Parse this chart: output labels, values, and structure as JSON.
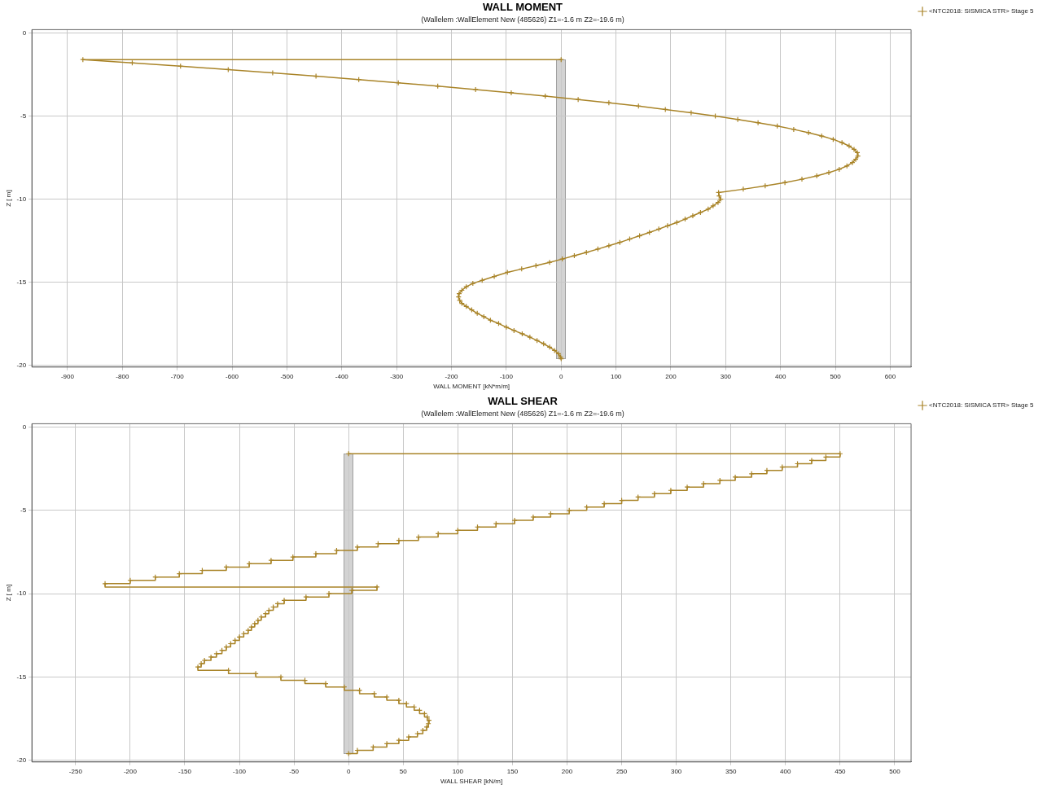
{
  "chart_data": [
    {
      "type": "line",
      "title": "WALL MOMENT",
      "subtitle": "(Wallelem :WallElement New (485626) Z1=-1.6 m Z2=-19.6 m)",
      "xlabel": "WALL MOMENT [kN*m/m]",
      "ylabel": "Z [ m]",
      "series": [
        {
          "name": "<NTC2018: SISMICA STR> Stage 5",
          "color": "#a98428",
          "x": [
            0,
            -872,
            -782,
            -694,
            -607,
            -526,
            -447,
            -369,
            -297,
            -225,
            -156,
            -91,
            -29,
            31,
            87,
            141,
            190,
            237,
            281,
            322,
            359,
            394,
            424,
            451,
            475,
            496,
            512,
            525,
            534,
            540,
            541,
            537,
            531,
            521,
            507,
            488,
            466,
            439,
            408,
            372,
            332,
            287,
            288,
            291,
            286,
            277,
            268,
            254,
            240,
            226,
            211,
            194,
            178,
            161,
            143,
            125,
            107,
            87,
            67,
            46,
            24,
            2,
            -21,
            -46,
            -72,
            -98,
            -122,
            -144,
            -161,
            -173,
            -181,
            -186,
            -187,
            -185,
            -181,
            -173,
            -163,
            -153,
            -141,
            -129,
            -114,
            -100,
            -86,
            -71,
            -57,
            -44,
            -32,
            -21,
            -12,
            -5,
            -1,
            0
          ],
          "values": [
            -1.6,
            -1.6,
            -1.8,
            -2.0,
            -2.2,
            -2.4,
            -2.6,
            -2.8,
            -3.0,
            -3.2,
            -3.4,
            -3.6,
            -3.8,
            -4.0,
            -4.2,
            -4.4,
            -4.6,
            -4.8,
            -5.0,
            -5.2,
            -5.4,
            -5.6,
            -5.8,
            -6.0,
            -6.2,
            -6.4,
            -6.6,
            -6.8,
            -7.0,
            -7.2,
            -7.4,
            -7.6,
            -7.8,
            -8.0,
            -8.2,
            -8.4,
            -8.6,
            -8.8,
            -9.0,
            -9.2,
            -9.4,
            -9.6,
            -9.8,
            -10.0,
            -10.2,
            -10.4,
            -10.6,
            -10.8,
            -11.0,
            -11.2,
            -11.4,
            -11.6,
            -11.8,
            -12.0,
            -12.2,
            -12.4,
            -12.6,
            -12.8,
            -13.0,
            -13.2,
            -13.4,
            -13.6,
            -13.8,
            -14.0,
            -14.2,
            -14.4,
            -14.65,
            -14.88,
            -15.07,
            -15.27,
            -15.48,
            -15.68,
            -15.88,
            -16.09,
            -16.27,
            -16.45,
            -16.66,
            -16.87,
            -17.07,
            -17.28,
            -17.48,
            -17.7,
            -17.9,
            -18.1,
            -18.3,
            -18.5,
            -18.7,
            -18.9,
            -19.1,
            -19.3,
            -19.5,
            -19.6
          ]
        }
      ],
      "xlim": [
        -965,
        638
      ],
      "ylim": [
        -20.1,
        0.2
      ],
      "xticks": [
        -900,
        -800,
        -700,
        -600,
        -500,
        -400,
        -300,
        -200,
        -100,
        0,
        100,
        200,
        300,
        400,
        500,
        600
      ],
      "yticks": [
        0,
        -5,
        -10,
        -15,
        -20
      ],
      "grid": true,
      "legend": "top right",
      "marker": "cross"
    },
    {
      "type": "step",
      "title": "WALL SHEAR",
      "subtitle": "(Wallelem :WallElement New (485626) Z1=-1.6 m Z2=-19.6 m)",
      "xlabel": "WALL SHEAR [kN/m]",
      "ylabel": "Z [ m]",
      "series": [
        {
          "name": "<NTC2018: SISMICA STR> Stage 5",
          "color": "#a98428",
          "x": [
            0,
            450,
            437,
            424,
            411,
            397,
            383,
            369,
            354,
            340,
            325,
            310,
            295,
            280,
            265,
            250,
            234,
            218,
            202,
            185,
            169,
            152,
            135,
            118,
            100,
            82,
            64,
            46,
            27,
            8,
            -11,
            -30,
            -51,
            -71,
            -91,
            -112,
            -134,
            -155,
            -177,
            -200,
            -223,
            26,
            3,
            -18,
            -39,
            -59,
            -65,
            -69,
            -73,
            -76,
            -80,
            -83,
            -86,
            -89,
            -92,
            -96,
            -100,
            -104,
            -108,
            -112,
            -116,
            -121,
            -126,
            -132,
            -135,
            -138,
            -110,
            -85,
            -62,
            -40,
            -21,
            -4,
            10,
            23.5,
            35,
            46,
            53,
            60,
            65,
            69.5,
            72,
            73.6,
            73,
            71.5,
            68,
            63,
            55,
            46,
            35,
            22.5,
            8,
            0
          ],
          "values": [
            -1.6,
            -1.6,
            -1.8,
            -2.0,
            -2.2,
            -2.4,
            -2.6,
            -2.8,
            -3.0,
            -3.2,
            -3.4,
            -3.6,
            -3.8,
            -4.0,
            -4.2,
            -4.4,
            -4.6,
            -4.8,
            -5.0,
            -5.2,
            -5.4,
            -5.6,
            -5.8,
            -6.0,
            -6.2,
            -6.4,
            -6.6,
            -6.8,
            -7.0,
            -7.2,
            -7.4,
            -7.6,
            -7.8,
            -8.0,
            -8.2,
            -8.4,
            -8.6,
            -8.8,
            -9.0,
            -9.2,
            -9.4,
            -9.6,
            -9.8,
            -10.0,
            -10.2,
            -10.4,
            -10.6,
            -10.8,
            -11.0,
            -11.2,
            -11.4,
            -11.6,
            -11.8,
            -12.0,
            -12.2,
            -12.4,
            -12.6,
            -12.8,
            -13.0,
            -13.2,
            -13.4,
            -13.6,
            -13.8,
            -14.0,
            -14.2,
            -14.4,
            -14.6,
            -14.8,
            -15.0,
            -15.2,
            -15.4,
            -15.6,
            -15.8,
            -16.0,
            -16.2,
            -16.4,
            -16.6,
            -16.8,
            -17.0,
            -17.2,
            -17.4,
            -17.6,
            -17.8,
            -18.0,
            -18.2,
            -18.4,
            -18.6,
            -18.8,
            -19.0,
            -19.2,
            -19.4,
            -19.6
          ]
        }
      ],
      "xlim": [
        -290,
        515
      ],
      "ylim": [
        -20.1,
        0.2
      ],
      "xticks": [
        -250,
        -200,
        -150,
        -100,
        -50,
        0,
        50,
        100,
        150,
        200,
        250,
        300,
        350,
        400,
        450,
        500
      ],
      "yticks": [
        0,
        -5,
        -10,
        -15,
        -20
      ],
      "grid": true,
      "legend": "top right",
      "marker": "cross"
    }
  ]
}
